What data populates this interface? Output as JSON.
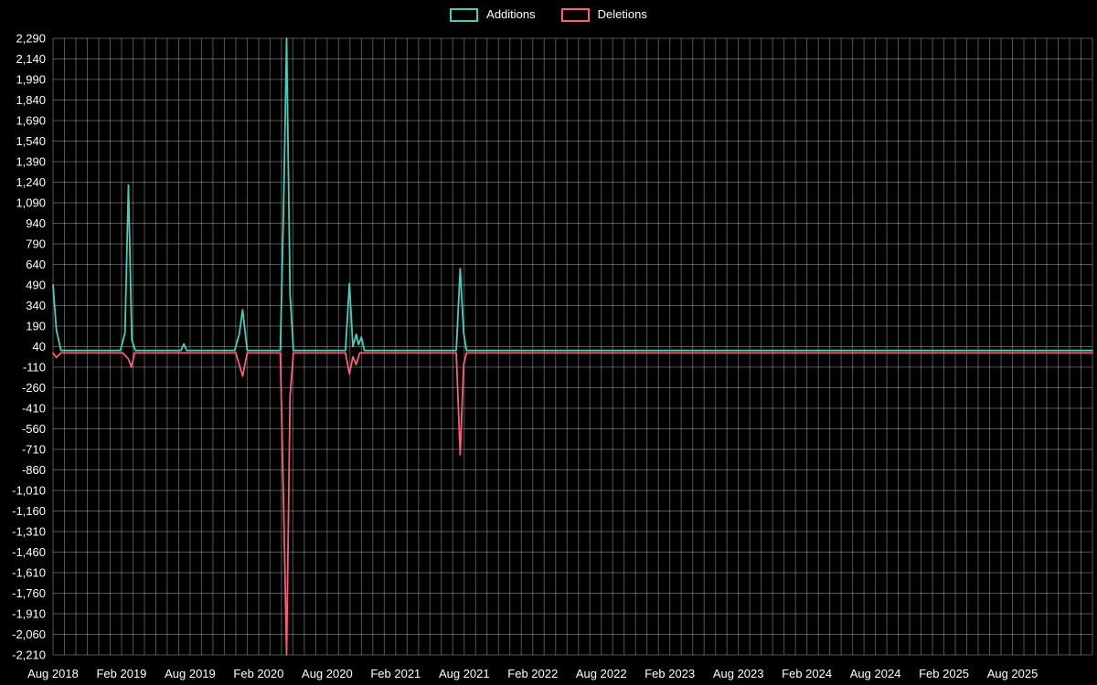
{
  "page": {
    "background": "#000000",
    "text_color": "#ffffff",
    "grid_color": "rgba(255,255,255,0.33)"
  },
  "chart_data": {
    "type": "line",
    "title": "",
    "xlabel": "",
    "ylabel": "",
    "legend_position": "top-center",
    "grid": true,
    "x_axis": {
      "unit": "months since Aug 2018",
      "months_total": 91,
      "tick_interval_months": 6,
      "tick_months": [
        0,
        6,
        12,
        18,
        24,
        30,
        36,
        42,
        48,
        54,
        60,
        66,
        72,
        78,
        84
      ],
      "tick_labels": [
        "Aug 2018",
        "Feb 2019",
        "Aug 2019",
        "Feb 2020",
        "Aug 2020",
        "Feb 2021",
        "Aug 2021",
        "Feb 2022",
        "Aug 2022",
        "Feb 2023",
        "Aug 2023",
        "Feb 2024",
        "Aug 2024",
        "Feb 2025",
        "Aug 2025"
      ]
    },
    "y_axis": {
      "min": -2210,
      "max": 2290,
      "step": 150,
      "tick_labels": [
        "2,290",
        "2,140",
        "1,990",
        "1,840",
        "1,690",
        "1,540",
        "1,390",
        "1,240",
        "1,090",
        "940",
        "790",
        "640",
        "490",
        "340",
        "190",
        "40",
        "-110",
        "-260",
        "-410",
        "-560",
        "-710",
        "-860",
        "-1,010",
        "-1,160",
        "-1,310",
        "-1,460",
        "-1,610",
        "-1,760",
        "-1,910",
        "-2,060",
        "-2,210"
      ]
    },
    "series": [
      {
        "name": "Additions",
        "color": "#47cdbb",
        "points": [
          [
            0,
            490
          ],
          [
            0.3,
            160
          ],
          [
            0.7,
            12
          ],
          [
            5.9,
            12
          ],
          [
            6.3,
            140
          ],
          [
            6.6,
            1220
          ],
          [
            6.9,
            90
          ],
          [
            7.2,
            12
          ],
          [
            11.2,
            12
          ],
          [
            11.45,
            60
          ],
          [
            11.7,
            12
          ],
          [
            15.9,
            12
          ],
          [
            16.3,
            130
          ],
          [
            16.6,
            310
          ],
          [
            17.0,
            12
          ],
          [
            19.9,
            12
          ],
          [
            20.2,
            1120
          ],
          [
            20.45,
            2290
          ],
          [
            20.75,
            420
          ],
          [
            21.05,
            12
          ],
          [
            25.6,
            12
          ],
          [
            25.95,
            500
          ],
          [
            26.25,
            40
          ],
          [
            26.55,
            130
          ],
          [
            26.75,
            55
          ],
          [
            27.0,
            110
          ],
          [
            27.25,
            12
          ],
          [
            35.3,
            12
          ],
          [
            35.65,
            610
          ],
          [
            35.95,
            140
          ],
          [
            36.2,
            12
          ],
          [
            91,
            12
          ]
        ]
      },
      {
        "name": "Deletions",
        "color": "#f85e75",
        "points": [
          [
            0,
            -6
          ],
          [
            0.3,
            -40
          ],
          [
            0.7,
            -6
          ],
          [
            6.1,
            -6
          ],
          [
            6.6,
            -50
          ],
          [
            6.85,
            -110
          ],
          [
            7.15,
            -6
          ],
          [
            16.0,
            -6
          ],
          [
            16.6,
            -175
          ],
          [
            17.0,
            -6
          ],
          [
            19.9,
            -6
          ],
          [
            20.2,
            -1160
          ],
          [
            20.45,
            -2210
          ],
          [
            20.75,
            -320
          ],
          [
            21.05,
            -6
          ],
          [
            25.6,
            -6
          ],
          [
            25.95,
            -160
          ],
          [
            26.25,
            -35
          ],
          [
            26.55,
            -90
          ],
          [
            26.85,
            -6
          ],
          [
            35.3,
            -6
          ],
          [
            35.65,
            -750
          ],
          [
            35.95,
            -90
          ],
          [
            36.2,
            -6
          ],
          [
            91,
            -6
          ]
        ]
      }
    ]
  }
}
